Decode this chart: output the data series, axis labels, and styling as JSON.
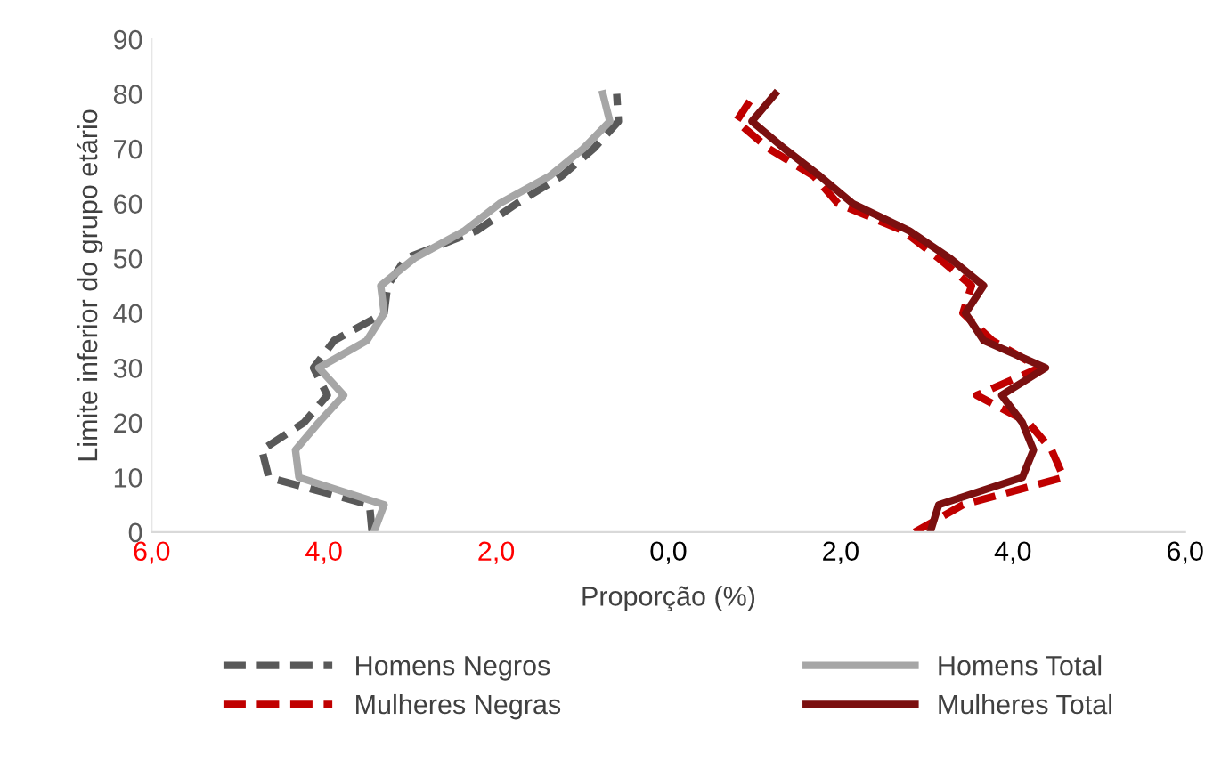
{
  "chart_data": {
    "type": "line",
    "xlabel": "Proporção (%)",
    "ylabel": "Limite inferior do grupo etário",
    "xlim": [
      -6,
      6
    ],
    "xticks": [
      {
        "value": -6,
        "label": "6,0"
      },
      {
        "value": -4,
        "label": "4,0"
      },
      {
        "value": -2,
        "label": "2,0"
      },
      {
        "value": 0,
        "label": "0,0"
      },
      {
        "value": 2,
        "label": "2,0"
      },
      {
        "value": 4,
        "label": "4,0"
      },
      {
        "value": 6,
        "label": "6,0"
      }
    ],
    "ylim": [
      0,
      90
    ],
    "yticks": [
      0,
      10,
      20,
      30,
      40,
      50,
      60,
      70,
      80,
      90
    ],
    "grid": false,
    "legend": "bottom",
    "marker": "none",
    "series": [
      {
        "name": "Homens Negros",
        "color": "#595959",
        "line_style": "dashed",
        "x": [
          -3.44,
          -3.47,
          -4.64,
          -4.72,
          -4.23,
          -3.96,
          -4.12,
          -3.88,
          -3.3,
          -3.26,
          -3.05,
          -2.23,
          -1.76,
          -1.24,
          -0.87,
          -0.58,
          -0.6
        ],
        "values": [
          0,
          5,
          10,
          15,
          20,
          25,
          30,
          35,
          40,
          45,
          50,
          55,
          60,
          65,
          70,
          75,
          80
        ]
      },
      {
        "name": "Mulheres Negras",
        "color": "#c00000",
        "line_style": "dashed",
        "x": [
          2.86,
          3.42,
          4.59,
          4.45,
          4.18,
          3.58,
          4.31,
          3.76,
          3.42,
          3.52,
          3.14,
          2.73,
          1.97,
          1.69,
          1.17,
          0.79,
          1.0
        ],
        "values": [
          0,
          5,
          10,
          15,
          20,
          25,
          30,
          35,
          40,
          45,
          50,
          55,
          60,
          65,
          70,
          75,
          80
        ]
      },
      {
        "name": "Homens Total",
        "color": "#a6a6a6",
        "line_style": "solid",
        "x": [
          -3.42,
          -3.3,
          -4.29,
          -4.33,
          -4.06,
          -3.77,
          -4.06,
          -3.5,
          -3.3,
          -3.34,
          -2.95,
          -2.37,
          -1.96,
          -1.38,
          -0.99,
          -0.68,
          -0.76
        ],
        "values": [
          0,
          5,
          10,
          15,
          20,
          25,
          30,
          35,
          40,
          45,
          50,
          55,
          60,
          65,
          70,
          75,
          80
        ]
      },
      {
        "name": "Mulheres Total",
        "color": "#7b1010",
        "line_style": "solid",
        "x": [
          3.04,
          3.14,
          4.11,
          4.24,
          4.11,
          3.87,
          4.38,
          3.66,
          3.45,
          3.66,
          3.27,
          2.8,
          2.14,
          1.76,
          1.35,
          0.97,
          1.24
        ],
        "values": [
          0,
          5,
          10,
          15,
          20,
          25,
          30,
          35,
          40,
          45,
          50,
          55,
          60,
          65,
          70,
          75,
          80
        ]
      }
    ]
  }
}
